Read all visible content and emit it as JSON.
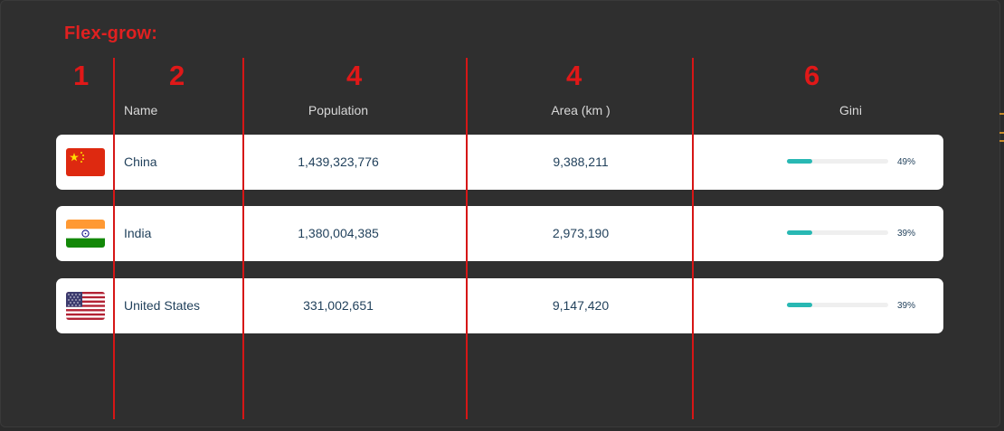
{
  "title": "Flex-grow:",
  "column_numbers": [
    "1",
    "2",
    "4",
    "4",
    "6"
  ],
  "headers": {
    "name": "Name",
    "population": "Population",
    "area": "Area (km  )",
    "gini": "Gini"
  },
  "rows": [
    {
      "flag": "china-flag-icon",
      "name": "China",
      "population": "1,439,323,776",
      "area": "9,388,211",
      "gini_label": "49%",
      "gini_fill": 0.25
    },
    {
      "flag": "india-flag-icon",
      "name": "India",
      "population": "1,380,004,385",
      "area": "2,973,190",
      "gini_label": "39%",
      "gini_fill": 0.25
    },
    {
      "flag": "us-flag-icon",
      "name": "United States",
      "population": "331,002,651",
      "area": "9,147,420",
      "gini_label": "39%",
      "gini_fill": 0.25
    }
  ],
  "colors": {
    "annotation_red": "#e02020",
    "bar_teal": "#28b8b3",
    "text_navy": "#1f3f5a"
  }
}
